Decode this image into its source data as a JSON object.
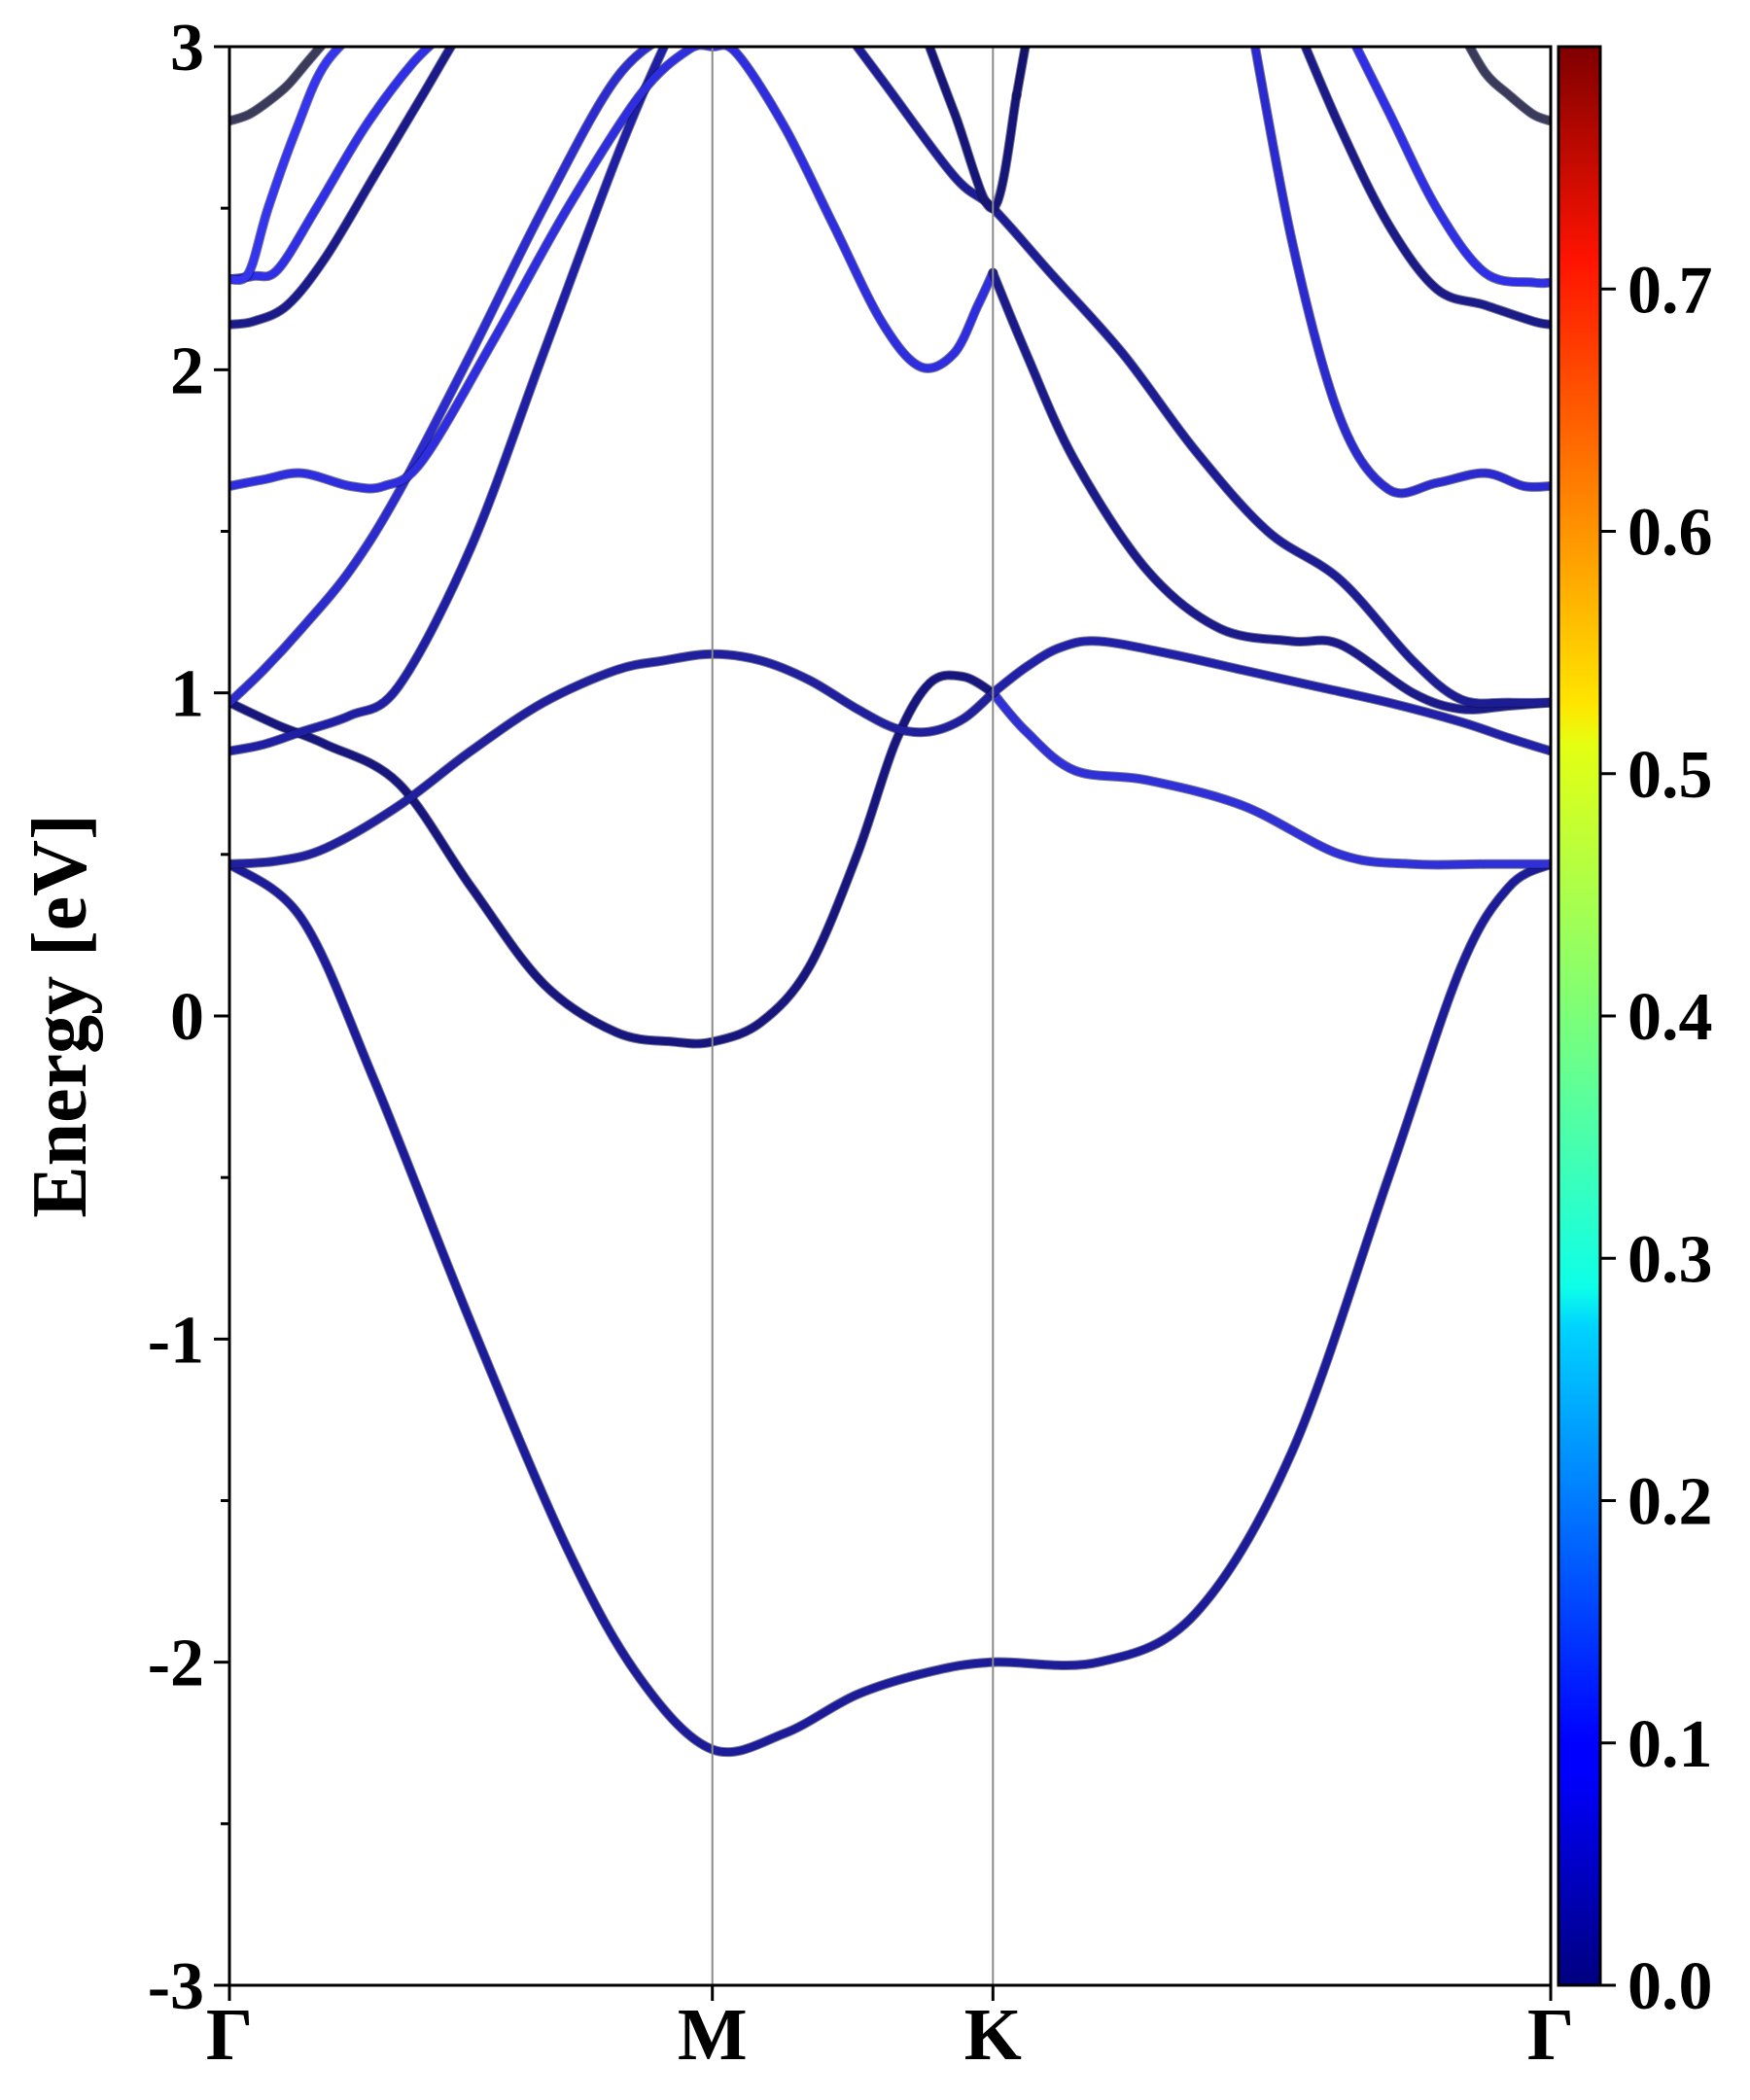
{
  "chart_data": {
    "type": "line",
    "title": "",
    "xlabel": "",
    "ylabel": "Energy [eV]",
    "ylim": [
      -3,
      3
    ],
    "yticks": [
      -3,
      -2,
      -1,
      0,
      1,
      2,
      3
    ],
    "ytick_labels": [
      "-3",
      "-2",
      "-1",
      "0",
      "1",
      "2",
      "3"
    ],
    "kpath_labels": [
      "Γ",
      "M",
      "K",
      "Γ"
    ],
    "kpath_x": [
      0,
      1,
      1.581,
      2.736
    ],
    "grid": false,
    "colorbar": {
      "colormap": "jet",
      "range": [
        0.0,
        0.8
      ],
      "ticks": [
        0.0,
        0.1,
        0.2,
        0.3,
        0.4,
        0.5,
        0.6,
        0.7
      ],
      "tick_labels": [
        "0.0",
        "0.1",
        "0.2",
        "0.3",
        "0.4",
        "0.5",
        "0.6",
        "0.7"
      ]
    },
    "series": [
      {
        "color": "#1c1c9a",
        "x": [
          0,
          0.15,
          0.3,
          0.5,
          0.7,
          0.85,
          1,
          1.15,
          1.3,
          1.45,
          1.581,
          1.8,
          2.0,
          2.2,
          2.4,
          2.55,
          2.65,
          2.736
        ],
        "y": [
          0.47,
          0.3,
          -0.2,
          -0.95,
          -1.65,
          -2.05,
          -2.27,
          -2.22,
          -2.1,
          -2.03,
          -2.0,
          -2.0,
          -1.85,
          -1.35,
          -0.5,
          0.15,
          0.4,
          0.47
        ]
      },
      {
        "color": "#16167e",
        "x": [
          0,
          0.1,
          0.2,
          0.35,
          0.5,
          0.65,
          0.8,
          0.92,
          1,
          1.1,
          1.2,
          1.3,
          1.38,
          1.45,
          1.52,
          1.581
        ],
        "y": [
          0.97,
          0.9,
          0.84,
          0.72,
          0.4,
          0.1,
          -0.05,
          -0.08,
          -0.08,
          -0.02,
          0.15,
          0.5,
          0.85,
          1.03,
          1.05,
          1.0
        ]
      },
      {
        "color": "#3030d8",
        "x": [
          1.581,
          1.65,
          1.75,
          1.9,
          2.1,
          2.3,
          2.45,
          2.6,
          2.736
        ],
        "y": [
          1.0,
          0.88,
          0.76,
          0.73,
          0.65,
          0.5,
          0.47,
          0.47,
          0.47
        ]
      },
      {
        "color": "#20209f",
        "x": [
          0,
          0.1,
          0.2,
          0.35,
          0.5,
          0.65,
          0.8,
          0.9,
          1,
          1.1,
          1.2,
          1.3,
          1.38,
          1.45,
          1.52,
          1.581
        ],
        "y": [
          0.47,
          0.48,
          0.52,
          0.65,
          0.82,
          0.97,
          1.07,
          1.1,
          1.12,
          1.1,
          1.04,
          0.95,
          0.89,
          0.88,
          0.92,
          1.0
        ]
      },
      {
        "color": "#2020a8",
        "x": [
          1.581,
          1.65,
          1.72,
          1.8,
          1.95,
          2.1,
          2.25,
          2.4,
          2.55,
          2.65,
          2.736
        ],
        "y": [
          1.0,
          1.08,
          1.14,
          1.16,
          1.12,
          1.07,
          1.02,
          0.97,
          0.91,
          0.86,
          0.82
        ]
      },
      {
        "color": "#1f1fa6",
        "x": [
          0,
          0.07,
          0.15,
          0.25,
          0.35,
          0.5,
          0.65,
          0.8,
          0.9,
          1
        ],
        "y": [
          0.82,
          0.84,
          0.88,
          0.93,
          1.02,
          1.45,
          2.05,
          2.65,
          3.0,
          3.3
        ]
      },
      {
        "color": "#2b2bd0",
        "x": [
          0,
          0.07,
          0.15,
          0.25,
          0.35,
          0.5,
          0.65,
          0.8,
          0.92,
          1
        ],
        "y": [
          0.97,
          1.07,
          1.2,
          1.38,
          1.62,
          2.05,
          2.5,
          2.9,
          3.05,
          3.1
        ]
      },
      {
        "color": "#2e2ee0",
        "x": [
          0,
          0.07,
          0.15,
          0.25,
          0.32,
          0.4,
          0.55,
          0.7,
          0.85,
          0.95,
          1,
          1.05,
          1.15,
          1.25,
          1.35,
          1.43,
          1.5,
          1.55,
          1.581
        ],
        "y": [
          1.64,
          1.66,
          1.68,
          1.64,
          1.64,
          1.72,
          2.1,
          2.5,
          2.85,
          2.99,
          3.0,
          2.98,
          2.75,
          2.45,
          2.15,
          2.01,
          2.05,
          2.2,
          2.3
        ]
      },
      {
        "color": "#1a1a8a",
        "x": [
          1.581,
          1.65,
          1.75,
          1.9,
          2.05,
          2.2,
          2.3,
          2.45,
          2.55,
          2.65,
          2.736
        ],
        "y": [
          2.3,
          2.05,
          1.72,
          1.38,
          1.2,
          1.16,
          1.15,
          1.0,
          0.95,
          0.96,
          0.97
        ]
      },
      {
        "color": "#1c1c94",
        "x": [
          1.2,
          1.35,
          1.5,
          1.581,
          1.7,
          1.85,
          2.0,
          2.15,
          2.3,
          2.45,
          2.55,
          2.65,
          2.736
        ],
        "y": [
          3.2,
          2.9,
          2.6,
          2.5,
          2.3,
          2.05,
          1.75,
          1.5,
          1.35,
          1.1,
          0.98,
          0.97,
          0.97
        ]
      },
      {
        "color": "#161678",
        "x": [
          1.4,
          1.5,
          1.581,
          1.63
        ],
        "y": [
          3.2,
          2.8,
          2.5,
          2.85
        ]
      },
      {
        "color": "#14146e",
        "x": [
          1.63,
          1.66
        ],
        "y": [
          2.85,
          3.1
        ]
      },
      {
        "color": "#2a2ad0",
        "x": [
          2.1,
          2.2,
          2.3,
          2.4,
          2.5,
          2.6,
          2.68,
          2.736
        ],
        "y": [
          3.2,
          2.4,
          1.85,
          1.63,
          1.65,
          1.68,
          1.64,
          1.64
        ]
      },
      {
        "color": "#1a1a88",
        "x": [
          2.2,
          2.3,
          2.4,
          2.5,
          2.6,
          2.7,
          2.736
        ],
        "y": [
          3.1,
          2.75,
          2.45,
          2.25,
          2.2,
          2.15,
          2.14
        ]
      },
      {
        "color": "#2f2fe8",
        "x": [
          2.3,
          2.4,
          2.5,
          2.6,
          2.7,
          2.736
        ],
        "y": [
          3.1,
          2.8,
          2.5,
          2.3,
          2.27,
          2.27
        ]
      },
      {
        "color": "#1a1a8a",
        "x": [
          0,
          0.05,
          0.12,
          0.2,
          0.3,
          0.4,
          0.5,
          0.6
        ],
        "y": [
          2.14,
          2.15,
          2.2,
          2.35,
          2.6,
          2.85,
          3.1,
          3.3
        ]
      },
      {
        "color": "#2f2fe8",
        "x": [
          0,
          0.05,
          0.1,
          0.18,
          0.28,
          0.38,
          0.48,
          0.56
        ],
        "y": [
          2.28,
          2.29,
          2.31,
          2.5,
          2.75,
          2.95,
          3.1,
          3.3
        ]
      },
      {
        "color": "#3535f0",
        "x": [
          0,
          0.04,
          0.08,
          0.14,
          0.2,
          0.3
        ],
        "y": [
          2.28,
          2.3,
          2.5,
          2.75,
          2.95,
          3.1
        ]
      },
      {
        "color": "#3a3a5a",
        "x": [
          0,
          0.04,
          0.08,
          0.12,
          0.16,
          0.2
        ],
        "y": [
          2.77,
          2.79,
          2.83,
          2.88,
          2.95,
          3.02
        ]
      },
      {
        "color": "#3a3a5a",
        "x": [
          2.55,
          2.6,
          2.65,
          2.7,
          2.736
        ],
        "y": [
          3.05,
          2.92,
          2.85,
          2.79,
          2.77
        ]
      }
    ]
  }
}
